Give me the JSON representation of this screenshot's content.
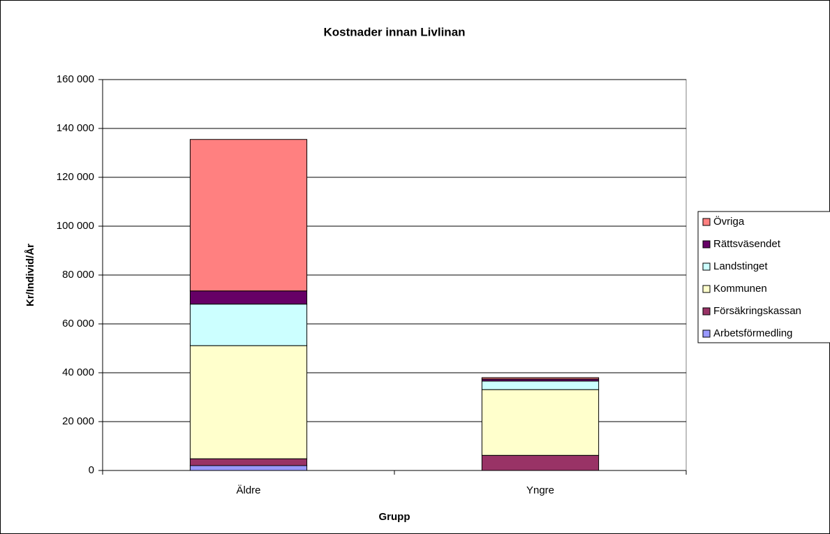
{
  "chart_data": {
    "type": "stacked_bar",
    "title": "Kostnader innan Livlinan",
    "x_label": "Grupp",
    "y_label": "Kr/Individ/År",
    "categories": [
      "Äldre",
      "Yngre"
    ],
    "series": [
      {
        "name": "Arbetsförmedling",
        "color": "#9999ff",
        "values": [
          2000,
          0
        ]
      },
      {
        "name": "Försäkringskassan",
        "color": "#993366",
        "values": [
          2800,
          6200
        ]
      },
      {
        "name": "Kommunen",
        "color": "#ffffcc",
        "values": [
          46300,
          26900
        ]
      },
      {
        "name": "Landstinget",
        "color": "#ccffff",
        "values": [
          17000,
          3500
        ]
      },
      {
        "name": "Rättsväsendet",
        "color": "#660066",
        "values": [
          5400,
          800
        ]
      },
      {
        "name": "Övriga",
        "color": "#ff8080",
        "values": [
          62000,
          600
        ]
      }
    ],
    "ylim": [
      0,
      160000
    ],
    "yticks": [
      0,
      {
        "value": 20000,
        "label": "20 000"
      },
      {
        "value": 40000,
        "label": "40 000"
      },
      {
        "value": 60000,
        "label": "60 000"
      },
      {
        "value": 80000,
        "label": "80 000"
      },
      {
        "value": 100000,
        "label": "100 000"
      },
      {
        "value": 120000,
        "label": "120 000"
      },
      {
        "value": 140000,
        "label": "140 000"
      },
      {
        "value": 160000,
        "label": "160 000"
      }
    ],
    "grid": true,
    "legend": "right"
  }
}
